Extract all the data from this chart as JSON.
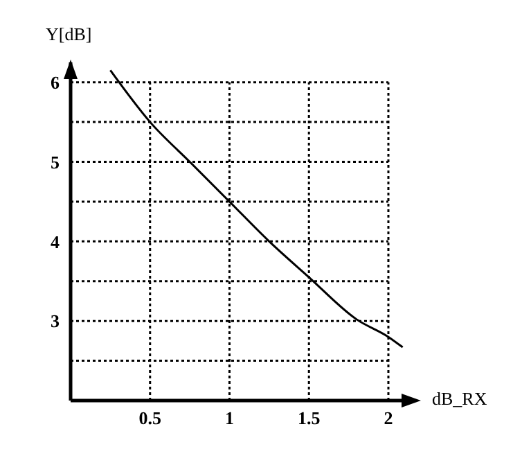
{
  "chart_data": {
    "type": "line",
    "xlabel": "dB_RX",
    "ylabel": "Y[dB]",
    "x": [
      0.25,
      0.5,
      0.75,
      1,
      1.25,
      1.5,
      1.8,
      2,
      2.09
    ],
    "series": [
      {
        "color": "#000000",
        "values": [
          6.15,
          5.5,
          5.0,
          4.5,
          4.0,
          3.55,
          3.02,
          2.8,
          2.67
        ]
      }
    ],
    "xlim": [
      0,
      2.17
    ],
    "ylim": [
      2,
      6.25
    ],
    "xticks": [
      0.5,
      1,
      1.5,
      2
    ],
    "yticks": [
      {
        "value": 2.5,
        "label": null
      },
      3,
      {
        "value": 3.5,
        "label": null
      },
      4,
      {
        "value": 4.5,
        "label": null
      },
      5,
      {
        "value": 5.5,
        "label": null
      },
      6
    ],
    "grid": true,
    "marker": "none",
    "line_style": "solid"
  }
}
